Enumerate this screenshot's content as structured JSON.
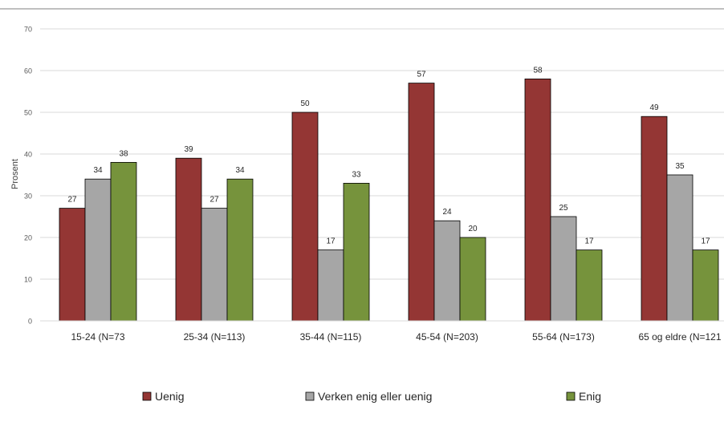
{
  "chart_data": {
    "type": "bar",
    "title": "",
    "xlabel": "",
    "ylabel": "Prosent",
    "ylim": [
      0,
      70
    ],
    "yticks": [
      0,
      10,
      20,
      30,
      40,
      50,
      60,
      70
    ],
    "grid": true,
    "legend_position": "bottom",
    "categories": [
      "15-24 (N=73",
      "25-34 (N=113)",
      "35-44 (N=115)",
      "45-54 (N=203)",
      "55-64 (N=173)",
      "65 og eldre (N=121"
    ],
    "series": [
      {
        "name": "Uenig",
        "color": "#943634",
        "values": [
          27,
          39,
          50,
          57,
          58,
          49
        ]
      },
      {
        "name": "Verken enig eller uenig",
        "color": "#A6A6A6",
        "values": [
          34,
          27,
          17,
          24,
          25,
          35
        ]
      },
      {
        "name": "Enig",
        "color": "#76933C",
        "values": [
          38,
          34,
          33,
          20,
          17,
          17
        ]
      }
    ]
  }
}
